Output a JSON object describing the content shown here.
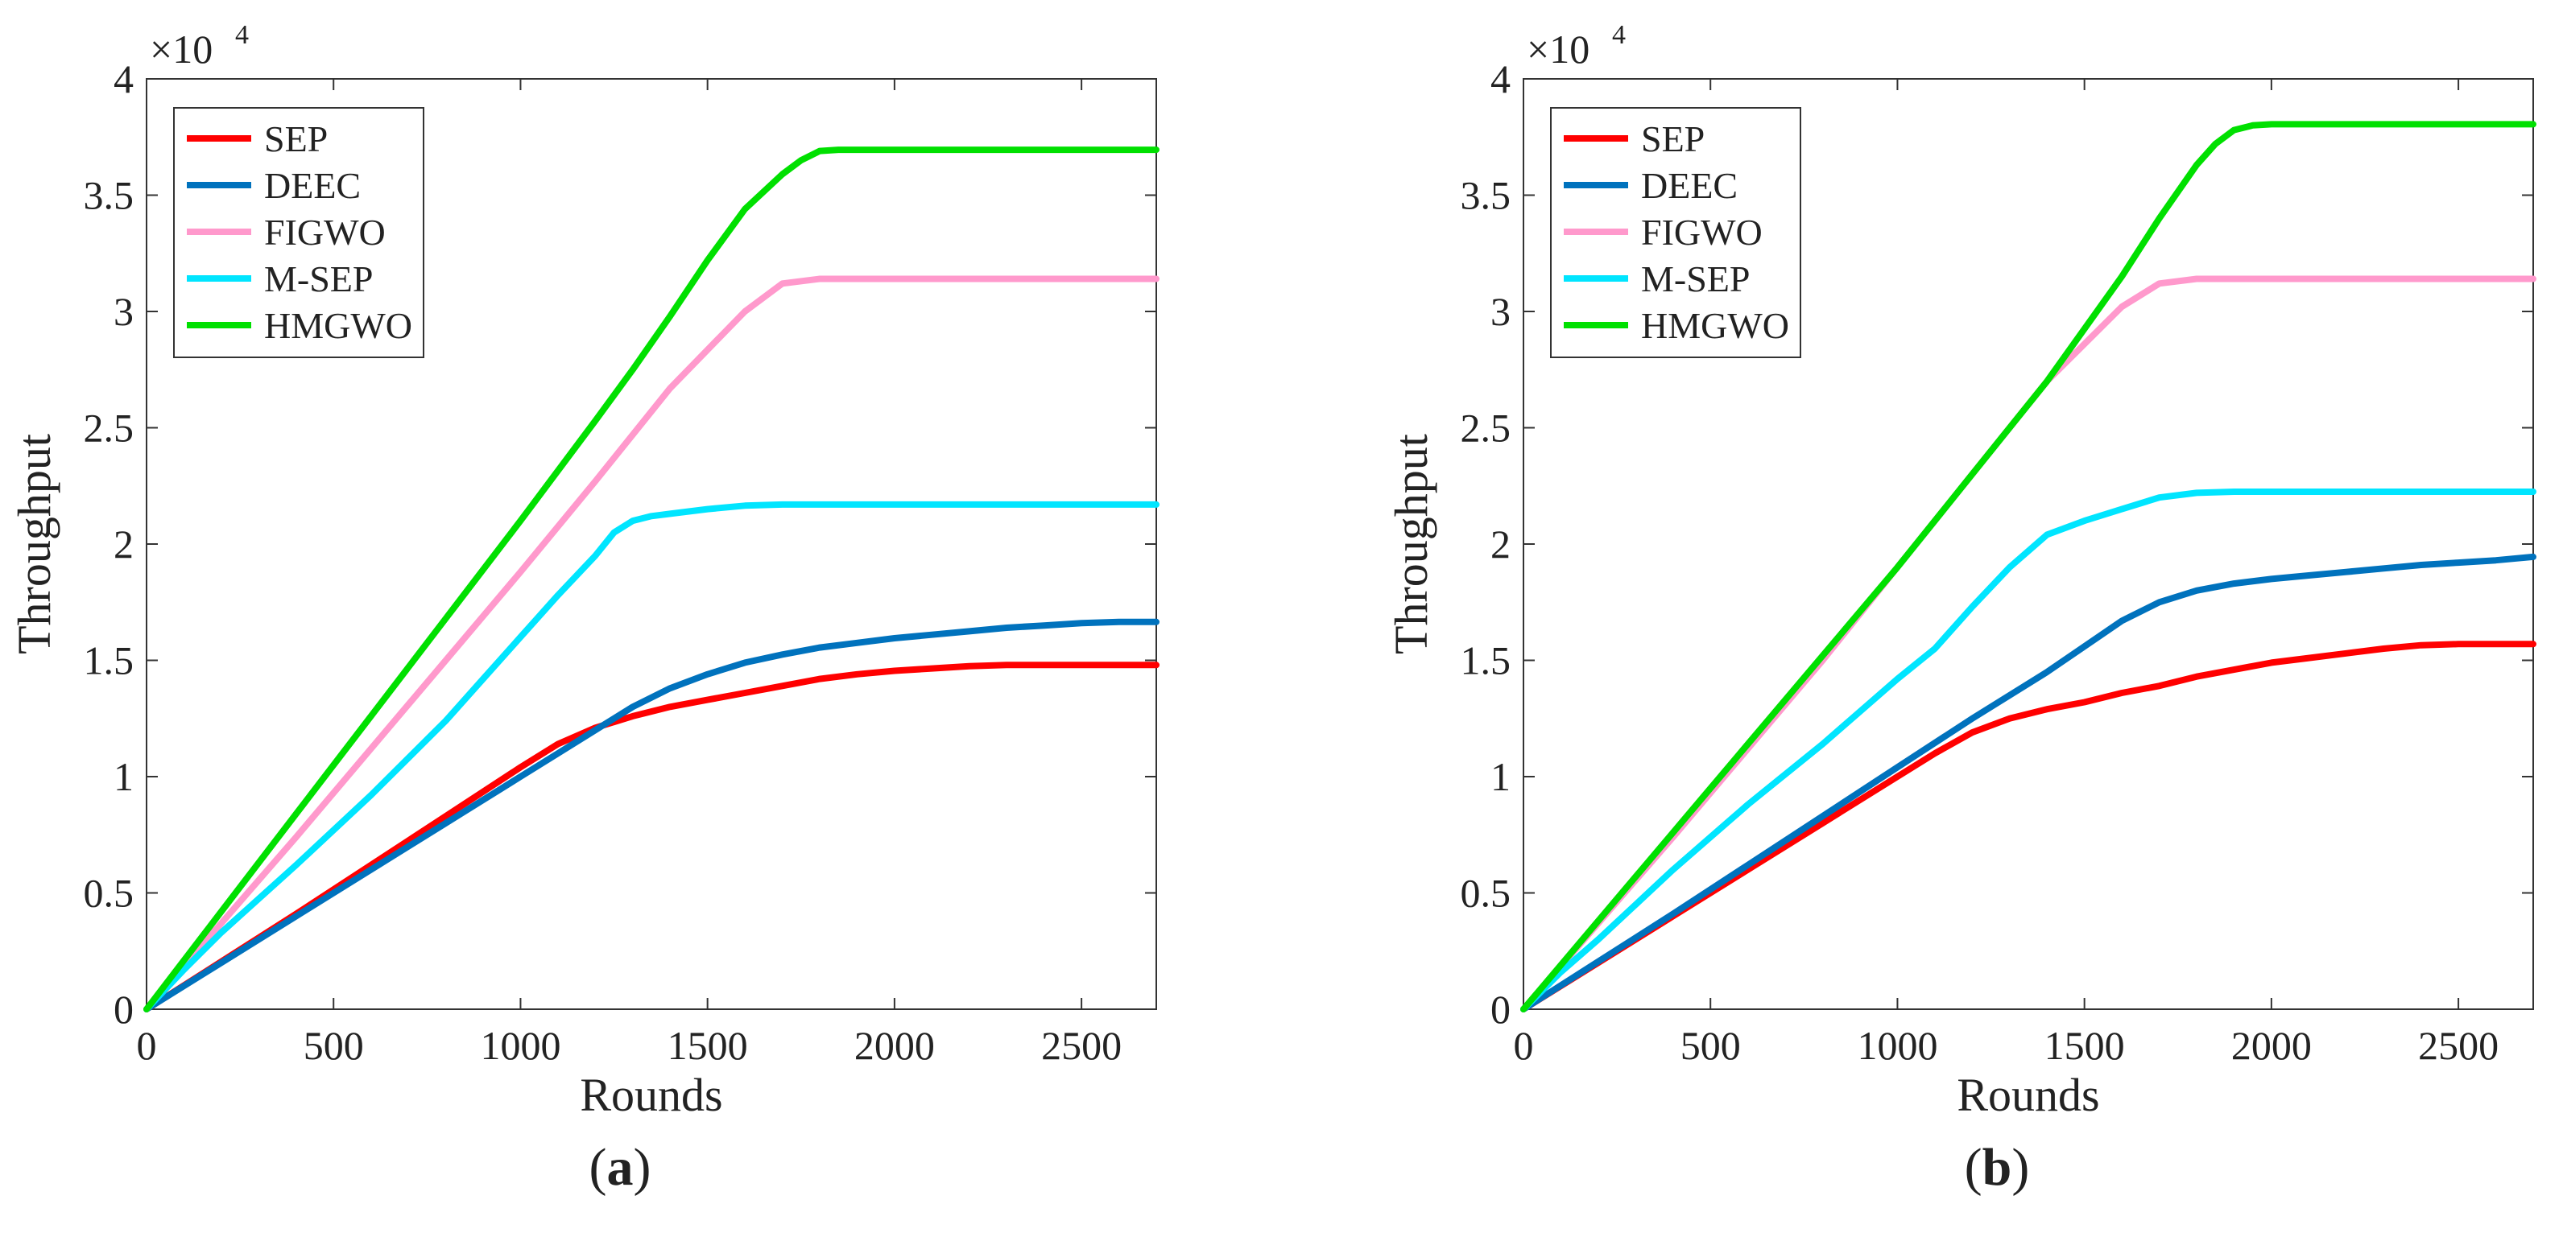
{
  "figure": {
    "panels": [
      {
        "caption_open": "(",
        "caption_label": "a",
        "caption_close": ")"
      },
      {
        "caption_open": "(",
        "caption_label": "b",
        "caption_close": ")"
      }
    ]
  },
  "colors": {
    "SEP": "#ff0000",
    "DEEC": "#0072bd",
    "FIGWO": "#ff99cc",
    "M-SEP": "#00e5ff",
    "HMGWO": "#00e000"
  },
  "chart_data": [
    {
      "type": "line",
      "panel": "a",
      "xlabel": "Rounds",
      "ylabel": "Throughput",
      "y_multiplier": "×10",
      "y_multiplier_exp": "4",
      "xlim": [
        0,
        2700
      ],
      "ylim": [
        0,
        4
      ],
      "xticks": [
        0,
        500,
        1000,
        1500,
        2000,
        2500
      ],
      "xtick_labels": [
        "0",
        "500",
        "1000",
        "1500",
        "2000",
        "2500"
      ],
      "yticks": [
        0,
        0.5,
        1,
        1.5,
        2,
        2.5,
        3,
        3.5,
        4
      ],
      "ytick_labels": [
        "0",
        "0.5",
        "1",
        "1.5",
        "2",
        "2.5",
        "3",
        "3.5",
        "4"
      ],
      "legend": [
        "SEP",
        "DEEC",
        "FIGWO",
        "M-SEP",
        "HMGWO"
      ],
      "series": [
        {
          "name": "SEP",
          "x": [
            0,
            200,
            400,
            600,
            800,
            1000,
            1100,
            1200,
            1300,
            1400,
            1500,
            1600,
            1700,
            1800,
            1900,
            2000,
            2100,
            2200,
            2300,
            2400,
            2500,
            2600,
            2700
          ],
          "y": [
            0,
            0.205,
            0.41,
            0.62,
            0.83,
            1.04,
            1.14,
            1.21,
            1.26,
            1.3,
            1.33,
            1.36,
            1.39,
            1.42,
            1.44,
            1.455,
            1.465,
            1.475,
            1.48,
            1.48,
            1.48,
            1.48,
            1.48
          ]
        },
        {
          "name": "DEEC",
          "x": [
            0,
            200,
            400,
            600,
            800,
            1000,
            1100,
            1200,
            1300,
            1400,
            1500,
            1600,
            1700,
            1800,
            1900,
            2000,
            2100,
            2200,
            2300,
            2400,
            2500,
            2600,
            2700
          ],
          "y": [
            0,
            0.2,
            0.4,
            0.6,
            0.8,
            1.0,
            1.1,
            1.2,
            1.3,
            1.38,
            1.44,
            1.49,
            1.525,
            1.555,
            1.575,
            1.595,
            1.61,
            1.625,
            1.64,
            1.65,
            1.66,
            1.665,
            1.665
          ]
        },
        {
          "name": "FIGWO",
          "x": [
            0,
            200,
            400,
            600,
            800,
            1000,
            1200,
            1400,
            1600,
            1700,
            1800,
            1900,
            2000,
            2200,
            2400,
            2700
          ],
          "y": [
            0,
            0.37,
            0.74,
            1.12,
            1.5,
            1.88,
            2.27,
            2.67,
            3.0,
            3.12,
            3.14,
            3.14,
            3.14,
            3.14,
            3.14,
            3.14
          ]
        },
        {
          "name": "M-SEP",
          "x": [
            0,
            100,
            200,
            400,
            600,
            800,
            900,
            1000,
            1100,
            1200,
            1250,
            1300,
            1350,
            1400,
            1500,
            1600,
            1700,
            1800,
            2000,
            2200,
            2400,
            2700
          ],
          "y": [
            0,
            0.17,
            0.33,
            0.62,
            0.92,
            1.24,
            1.42,
            1.6,
            1.78,
            1.95,
            2.05,
            2.1,
            2.12,
            2.13,
            2.15,
            2.165,
            2.17,
            2.17,
            2.17,
            2.17,
            2.17,
            2.17
          ]
        },
        {
          "name": "HMGWO",
          "x": [
            0,
            200,
            400,
            600,
            800,
            1000,
            1200,
            1300,
            1400,
            1500,
            1600,
            1700,
            1750,
            1800,
            1850,
            1900,
            2000,
            2200,
            2400,
            2700
          ],
          "y": [
            0,
            0.42,
            0.84,
            1.26,
            1.68,
            2.1,
            2.53,
            2.75,
            2.98,
            3.22,
            3.44,
            3.59,
            3.65,
            3.69,
            3.695,
            3.695,
            3.695,
            3.695,
            3.695,
            3.695
          ]
        }
      ]
    },
    {
      "type": "line",
      "panel": "b",
      "xlabel": "Rounds",
      "ylabel": "Throughput",
      "y_multiplier": "×10",
      "y_multiplier_exp": "4",
      "xlim": [
        0,
        2700
      ],
      "ylim": [
        0,
        4
      ],
      "xticks": [
        0,
        500,
        1000,
        1500,
        2000,
        2500
      ],
      "xtick_labels": [
        "0",
        "500",
        "1000",
        "1500",
        "2000",
        "2500"
      ],
      "yticks": [
        0,
        0.5,
        1,
        1.5,
        2,
        2.5,
        3,
        3.5,
        4
      ],
      "ytick_labels": [
        "0",
        "0.5",
        "1",
        "1.5",
        "2",
        "2.5",
        "3",
        "3.5",
        "4"
      ],
      "legend": [
        "SEP",
        "DEEC",
        "FIGWO",
        "M-SEP",
        "HMGWO"
      ],
      "series": [
        {
          "name": "SEP",
          "x": [
            0,
            200,
            400,
            600,
            800,
            1000,
            1100,
            1200,
            1300,
            1400,
            1500,
            1600,
            1700,
            1800,
            1900,
            2000,
            2100,
            2200,
            2300,
            2400,
            2500,
            2600,
            2700
          ],
          "y": [
            0,
            0.2,
            0.4,
            0.6,
            0.8,
            1.0,
            1.1,
            1.19,
            1.25,
            1.29,
            1.32,
            1.36,
            1.39,
            1.43,
            1.46,
            1.49,
            1.51,
            1.53,
            1.55,
            1.565,
            1.57,
            1.57,
            1.57
          ]
        },
        {
          "name": "DEEC",
          "x": [
            0,
            200,
            400,
            600,
            800,
            1000,
            1200,
            1400,
            1500,
            1600,
            1700,
            1800,
            1900,
            2000,
            2100,
            2200,
            2300,
            2400,
            2500,
            2600,
            2700
          ],
          "y": [
            0,
            0.205,
            0.41,
            0.62,
            0.83,
            1.04,
            1.25,
            1.45,
            1.56,
            1.67,
            1.75,
            1.8,
            1.83,
            1.85,
            1.865,
            1.88,
            1.895,
            1.91,
            1.92,
            1.93,
            1.945
          ]
        },
        {
          "name": "FIGWO",
          "x": [
            0,
            200,
            400,
            600,
            800,
            1000,
            1200,
            1400,
            1600,
            1700,
            1800,
            1900,
            2000,
            2200,
            2400,
            2700
          ],
          "y": [
            0,
            0.37,
            0.74,
            1.12,
            1.5,
            1.9,
            2.3,
            2.7,
            3.02,
            3.12,
            3.14,
            3.14,
            3.14,
            3.14,
            3.14,
            3.14
          ]
        },
        {
          "name": "M-SEP",
          "x": [
            0,
            100,
            200,
            400,
            600,
            800,
            1000,
            1100,
            1200,
            1300,
            1400,
            1500,
            1600,
            1700,
            1800,
            1900,
            2000,
            2200,
            2400,
            2700
          ],
          "y": [
            0,
            0.16,
            0.3,
            0.6,
            0.88,
            1.14,
            1.42,
            1.55,
            1.73,
            1.9,
            2.04,
            2.1,
            2.15,
            2.2,
            2.22,
            2.225,
            2.225,
            2.225,
            2.225,
            2.225
          ]
        },
        {
          "name": "HMGWO",
          "x": [
            0,
            200,
            400,
            600,
            800,
            1000,
            1200,
            1400,
            1600,
            1700,
            1800,
            1850,
            1900,
            1950,
            2000,
            2200,
            2400,
            2700
          ],
          "y": [
            0,
            0.38,
            0.76,
            1.14,
            1.52,
            1.9,
            2.3,
            2.7,
            3.15,
            3.4,
            3.63,
            3.72,
            3.78,
            3.8,
            3.805,
            3.805,
            3.805,
            3.805
          ]
        }
      ]
    }
  ]
}
